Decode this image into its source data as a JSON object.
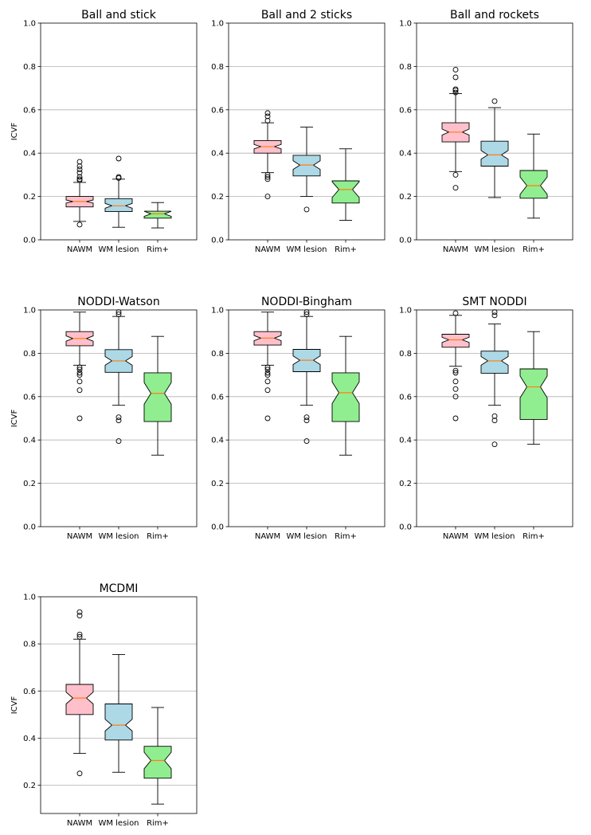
{
  "colors": {
    "NAWM": "#ffc0cb",
    "WM lesion": "#add8e6",
    "Rim+": "#90ee90",
    "median": "#ff7f0e",
    "grid": "#b0b0b0"
  },
  "chart_data": [
    {
      "type": "boxplot",
      "title": "Ball and stick",
      "ylabel": "ICVF",
      "ylim": [
        0,
        1.0
      ],
      "yticks": [
        "0.0",
        "0.2",
        "0.4",
        "0.6",
        "0.8",
        "1.0"
      ],
      "categories": [
        "NAWM",
        "WM lesion",
        "Rim+"
      ],
      "boxes": [
        {
          "q1": 0.152,
          "median": 0.177,
          "q3": 0.2,
          "whislo": 0.085,
          "whishi": 0.265,
          "notch_lo": 0.17,
          "notch_hi": 0.184,
          "fliers": [
            0.07,
            0.275,
            0.28,
            0.29,
            0.31,
            0.325,
            0.34,
            0.36
          ]
        },
        {
          "q1": 0.13,
          "median": 0.157,
          "q3": 0.19,
          "whislo": 0.058,
          "whishi": 0.28,
          "notch_lo": 0.146,
          "notch_hi": 0.168,
          "fliers": [
            0.285,
            0.29,
            0.375
          ]
        },
        {
          "q1": 0.1,
          "median": 0.12,
          "q3": 0.132,
          "whislo": 0.055,
          "whishi": 0.172,
          "notch_lo": 0.108,
          "notch_hi": 0.132,
          "fliers": []
        }
      ]
    },
    {
      "type": "boxplot",
      "title": "Ball and 2 sticks",
      "ylabel": "",
      "ylim": [
        0,
        1.0
      ],
      "yticks": [
        "0.0",
        "0.2",
        "0.4",
        "0.6",
        "0.8",
        "1.0"
      ],
      "categories": [
        "NAWM",
        "WM lesion",
        "Rim+"
      ],
      "boxes": [
        {
          "q1": 0.4,
          "median": 0.43,
          "q3": 0.458,
          "whislo": 0.31,
          "whishi": 0.54,
          "notch_lo": 0.42,
          "notch_hi": 0.44,
          "fliers": [
            0.2,
            0.28,
            0.29,
            0.3,
            0.55,
            0.57,
            0.585
          ]
        },
        {
          "q1": 0.295,
          "median": 0.345,
          "q3": 0.39,
          "whislo": 0.2,
          "whishi": 0.52,
          "notch_lo": 0.325,
          "notch_hi": 0.365,
          "fliers": [
            0.14
          ]
        },
        {
          "q1": 0.17,
          "median": 0.232,
          "q3": 0.272,
          "whislo": 0.09,
          "whishi": 0.42,
          "notch_lo": 0.195,
          "notch_hi": 0.268,
          "fliers": []
        }
      ]
    },
    {
      "type": "boxplot",
      "title": "Ball and rockets",
      "ylabel": "",
      "ylim": [
        0,
        1.0
      ],
      "yticks": [
        "0.0",
        "0.2",
        "0.4",
        "0.6",
        "0.8",
        "1.0"
      ],
      "categories": [
        "NAWM",
        "WM lesion",
        "Rim+"
      ],
      "boxes": [
        {
          "q1": 0.452,
          "median": 0.497,
          "q3": 0.54,
          "whislo": 0.315,
          "whishi": 0.675,
          "notch_lo": 0.483,
          "notch_hi": 0.511,
          "fliers": [
            0.24,
            0.3,
            0.68,
            0.69,
            0.695,
            0.75,
            0.785
          ]
        },
        {
          "q1": 0.34,
          "median": 0.392,
          "q3": 0.455,
          "whislo": 0.195,
          "whishi": 0.61,
          "notch_lo": 0.372,
          "notch_hi": 0.412,
          "fliers": [
            0.64
          ]
        },
        {
          "q1": 0.192,
          "median": 0.25,
          "q3": 0.32,
          "whislo": 0.1,
          "whishi": 0.488,
          "notch_lo": 0.21,
          "notch_hi": 0.29,
          "fliers": []
        }
      ]
    },
    {
      "type": "boxplot",
      "title": "NODDI-Watson",
      "ylabel": "ICVF",
      "ylim": [
        0,
        1.0
      ],
      "yticks": [
        "0.0",
        "0.2",
        "0.4",
        "0.6",
        "0.8",
        "1.0"
      ],
      "categories": [
        "NAWM",
        "WM lesion",
        "Rim+"
      ],
      "boxes": [
        {
          "q1": 0.835,
          "median": 0.868,
          "q3": 0.9,
          "whislo": 0.745,
          "whishi": 0.99,
          "notch_lo": 0.856,
          "notch_hi": 0.88,
          "fliers": [
            0.5,
            0.63,
            0.67,
            0.7,
            0.71,
            0.725,
            0.735
          ]
        },
        {
          "q1": 0.712,
          "median": 0.765,
          "q3": 0.817,
          "whislo": 0.56,
          "whishi": 0.97,
          "notch_lo": 0.745,
          "notch_hi": 0.785,
          "fliers": [
            0.395,
            0.49,
            0.505,
            0.98,
            0.99
          ]
        },
        {
          "q1": 0.485,
          "median": 0.615,
          "q3": 0.71,
          "whislo": 0.33,
          "whishi": 0.878,
          "notch_lo": 0.565,
          "notch_hi": 0.665,
          "fliers": []
        }
      ]
    },
    {
      "type": "boxplot",
      "title": "NODDI-Bingham",
      "ylabel": "",
      "ylim": [
        0,
        1.0
      ],
      "yticks": [
        "0.0",
        "0.2",
        "0.4",
        "0.6",
        "0.8",
        "1.0"
      ],
      "categories": [
        "NAWM",
        "WM lesion",
        "Rim+"
      ],
      "boxes": [
        {
          "q1": 0.838,
          "median": 0.87,
          "q3": 0.9,
          "whislo": 0.745,
          "whishi": 0.99,
          "notch_lo": 0.858,
          "notch_hi": 0.882,
          "fliers": [
            0.5,
            0.63,
            0.67,
            0.7,
            0.71,
            0.725,
            0.735
          ]
        },
        {
          "q1": 0.715,
          "median": 0.768,
          "q3": 0.818,
          "whislo": 0.56,
          "whishi": 0.97,
          "notch_lo": 0.748,
          "notch_hi": 0.788,
          "fliers": [
            0.395,
            0.49,
            0.505,
            0.98,
            0.99
          ]
        },
        {
          "q1": 0.485,
          "median": 0.618,
          "q3": 0.71,
          "whislo": 0.33,
          "whishi": 0.878,
          "notch_lo": 0.568,
          "notch_hi": 0.668,
          "fliers": []
        }
      ]
    },
    {
      "type": "boxplot",
      "title": "SMT NODDI",
      "ylabel": "",
      "ylim": [
        0,
        1.0
      ],
      "yticks": [
        "0.0",
        "0.2",
        "0.4",
        "0.6",
        "0.8",
        "1.0"
      ],
      "categories": [
        "NAWM",
        "WM lesion",
        "Rim+"
      ],
      "boxes": [
        {
          "q1": 0.828,
          "median": 0.862,
          "q3": 0.888,
          "whislo": 0.74,
          "whishi": 0.975,
          "notch_lo": 0.85,
          "notch_hi": 0.874,
          "fliers": [
            0.5,
            0.6,
            0.635,
            0.67,
            0.71,
            0.72,
            0.985
          ]
        },
        {
          "q1": 0.708,
          "median": 0.765,
          "q3": 0.81,
          "whislo": 0.56,
          "whishi": 0.935,
          "notch_lo": 0.745,
          "notch_hi": 0.785,
          "fliers": [
            0.38,
            0.49,
            0.51,
            0.975,
            0.99
          ]
        },
        {
          "q1": 0.495,
          "median": 0.645,
          "q3": 0.728,
          "whislo": 0.38,
          "whishi": 0.9,
          "notch_lo": 0.595,
          "notch_hi": 0.695,
          "fliers": []
        }
      ]
    },
    {
      "type": "boxplot",
      "title": "MCDMI",
      "ylabel": "ICVF",
      "ylim": [
        0.08,
        1.0
      ],
      "yticks": [
        "0.2",
        "0.4",
        "0.6",
        "0.8",
        "1.0"
      ],
      "categories": [
        "NAWM",
        "WM lesion",
        "Rim+"
      ],
      "boxes": [
        {
          "q1": 0.5,
          "median": 0.57,
          "q3": 0.628,
          "whislo": 0.335,
          "whishi": 0.82,
          "notch_lo": 0.545,
          "notch_hi": 0.595,
          "fliers": [
            0.25,
            0.83,
            0.84,
            0.92,
            0.935
          ]
        },
        {
          "q1": 0.392,
          "median": 0.455,
          "q3": 0.545,
          "whislo": 0.255,
          "whishi": 0.755,
          "notch_lo": 0.43,
          "notch_hi": 0.48,
          "fliers": []
        },
        {
          "q1": 0.23,
          "median": 0.305,
          "q3": 0.365,
          "whislo": 0.12,
          "whishi": 0.53,
          "notch_lo": 0.27,
          "notch_hi": 0.34,
          "fliers": []
        }
      ]
    }
  ]
}
